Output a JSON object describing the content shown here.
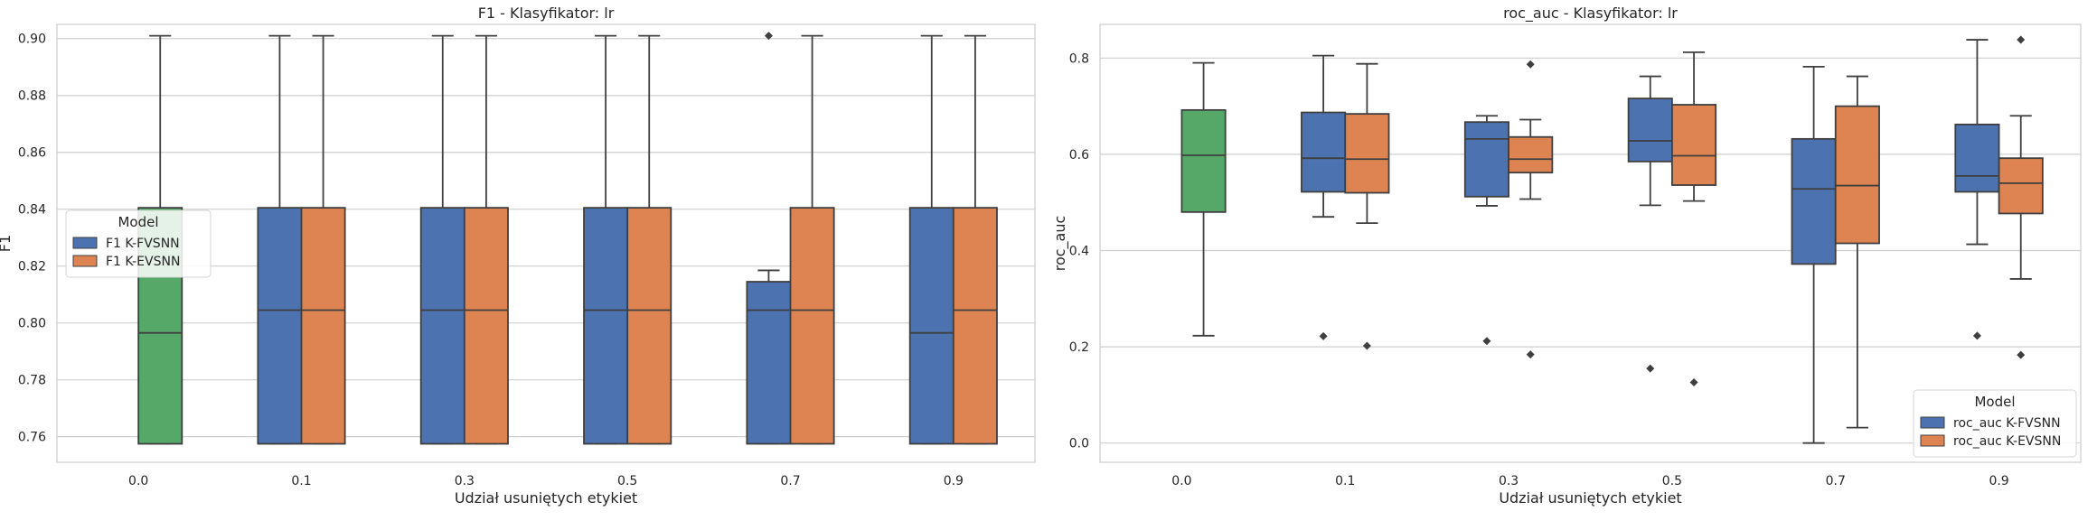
{
  "chart_data": [
    {
      "type": "box",
      "title": "F1 - Klasyfikator: lr",
      "xlabel": "Udział usuniętych etykiet",
      "ylabel": "F1",
      "categories": [
        "0.0",
        "0.1",
        "0.3",
        "0.5",
        "0.7",
        "0.9"
      ],
      "ylim": [
        0.751,
        0.905
      ],
      "yticks": [
        "0.76",
        "0.78",
        "0.80",
        "0.82",
        "0.84",
        "0.86",
        "0.88",
        "0.90"
      ],
      "grid": true,
      "legend": {
        "title": "Model",
        "placement": "center-left",
        "entries": [
          {
            "name": "F1 K-FVSNN",
            "color": "#4c72b0"
          },
          {
            "name": "F1 K-EVSNN",
            "color": "#dd8452"
          }
        ]
      },
      "baseline": {
        "category": "0.0",
        "color": "#55a868",
        "whisker_low": 0.7575,
        "q1": 0.7575,
        "median": 0.7965,
        "q3": 0.8405,
        "whisker_high": 0.901,
        "outliers": []
      },
      "series": [
        {
          "name": "F1 K-FVSNN",
          "color": "#4c72b0",
          "boxes": [
            {
              "category": "0.1",
              "whisker_low": 0.7575,
              "q1": 0.7575,
              "median": 0.8045,
              "q3": 0.8405,
              "whisker_high": 0.901,
              "outliers": []
            },
            {
              "category": "0.3",
              "whisker_low": 0.7575,
              "q1": 0.7575,
              "median": 0.8045,
              "q3": 0.8405,
              "whisker_high": 0.901,
              "outliers": []
            },
            {
              "category": "0.5",
              "whisker_low": 0.7575,
              "q1": 0.7575,
              "median": 0.8045,
              "q3": 0.8405,
              "whisker_high": 0.901,
              "outliers": []
            },
            {
              "category": "0.7",
              "whisker_low": 0.7575,
              "q1": 0.7575,
              "median": 0.8045,
              "q3": 0.8145,
              "whisker_high": 0.8185,
              "outliers": [
                0.901
              ]
            },
            {
              "category": "0.9",
              "whisker_low": 0.7575,
              "q1": 0.7575,
              "median": 0.7965,
              "q3": 0.8405,
              "whisker_high": 0.901,
              "outliers": []
            }
          ]
        },
        {
          "name": "F1 K-EVSNN",
          "color": "#dd8452",
          "boxes": [
            {
              "category": "0.1",
              "whisker_low": 0.7575,
              "q1": 0.7575,
              "median": 0.8045,
              "q3": 0.8405,
              "whisker_high": 0.901,
              "outliers": []
            },
            {
              "category": "0.3",
              "whisker_low": 0.7575,
              "q1": 0.7575,
              "median": 0.8045,
              "q3": 0.8405,
              "whisker_high": 0.901,
              "outliers": []
            },
            {
              "category": "0.5",
              "whisker_low": 0.7575,
              "q1": 0.7575,
              "median": 0.8045,
              "q3": 0.8405,
              "whisker_high": 0.901,
              "outliers": []
            },
            {
              "category": "0.7",
              "whisker_low": 0.7575,
              "q1": 0.7575,
              "median": 0.8045,
              "q3": 0.8405,
              "whisker_high": 0.901,
              "outliers": []
            },
            {
              "category": "0.9",
              "whisker_low": 0.7575,
              "q1": 0.7575,
              "median": 0.8045,
              "q3": 0.8405,
              "whisker_high": 0.901,
              "outliers": []
            }
          ]
        }
      ]
    },
    {
      "type": "box",
      "title": "roc_auc - Klasyfikator: lr",
      "xlabel": "Udział usuniętych etykiet",
      "ylabel": "roc_auc",
      "categories": [
        "0.0",
        "0.1",
        "0.3",
        "0.5",
        "0.7",
        "0.9"
      ],
      "ylim": [
        -0.04,
        0.87
      ],
      "yticks": [
        "0.0",
        "0.2",
        "0.4",
        "0.6",
        "0.8"
      ],
      "grid": true,
      "legend": {
        "title": "Model",
        "placement": "lower-right",
        "entries": [
          {
            "name": "roc_auc K-FVSNN",
            "color": "#4c72b0"
          },
          {
            "name": "roc_auc K-EVSNN",
            "color": "#dd8452"
          }
        ]
      },
      "baseline": {
        "category": "0.0",
        "color": "#55a868",
        "whisker_low": 0.223,
        "q1": 0.48,
        "median": 0.598,
        "q3": 0.692,
        "whisker_high": 0.79,
        "outliers": []
      },
      "series": [
        {
          "name": "roc_auc K-FVSNN",
          "color": "#4c72b0",
          "boxes": [
            {
              "category": "0.1",
              "whisker_low": 0.47,
              "q1": 0.522,
              "median": 0.592,
              "q3": 0.687,
              "whisker_high": 0.805,
              "outliers": [
                0.222
              ]
            },
            {
              "category": "0.3",
              "whisker_low": 0.493,
              "q1": 0.512,
              "median": 0.632,
              "q3": 0.667,
              "whisker_high": 0.68,
              "outliers": [
                0.212
              ]
            },
            {
              "category": "0.5",
              "whisker_low": 0.494,
              "q1": 0.585,
              "median": 0.628,
              "q3": 0.716,
              "whisker_high": 0.762,
              "outliers": [
                0.155
              ]
            },
            {
              "category": "0.7",
              "whisker_low": 0.0,
              "q1": 0.372,
              "median": 0.528,
              "q3": 0.632,
              "whisker_high": 0.782,
              "outliers": []
            },
            {
              "category": "0.9",
              "whisker_low": 0.413,
              "q1": 0.522,
              "median": 0.555,
              "q3": 0.662,
              "whisker_high": 0.838,
              "outliers": [
                0.223
              ]
            }
          ]
        },
        {
          "name": "roc_auc K-EVSNN",
          "color": "#dd8452",
          "boxes": [
            {
              "category": "0.1",
              "whisker_low": 0.457,
              "q1": 0.52,
              "median": 0.59,
              "q3": 0.684,
              "whisker_high": 0.788,
              "outliers": [
                0.202
              ]
            },
            {
              "category": "0.3",
              "whisker_low": 0.507,
              "q1": 0.562,
              "median": 0.59,
              "q3": 0.636,
              "whisker_high": 0.672,
              "outliers": [
                0.787,
                0.184
              ]
            },
            {
              "category": "0.5",
              "whisker_low": 0.503,
              "q1": 0.536,
              "median": 0.597,
              "q3": 0.703,
              "whisker_high": 0.812,
              "outliers": [
                0.126
              ]
            },
            {
              "category": "0.7",
              "whisker_low": 0.032,
              "q1": 0.415,
              "median": 0.535,
              "q3": 0.7,
              "whisker_high": 0.762,
              "outliers": []
            },
            {
              "category": "0.9",
              "whisker_low": 0.341,
              "q1": 0.477,
              "median": 0.54,
              "q3": 0.592,
              "whisker_high": 0.68,
              "outliers": [
                0.838,
                0.183
              ]
            }
          ]
        }
      ]
    }
  ]
}
